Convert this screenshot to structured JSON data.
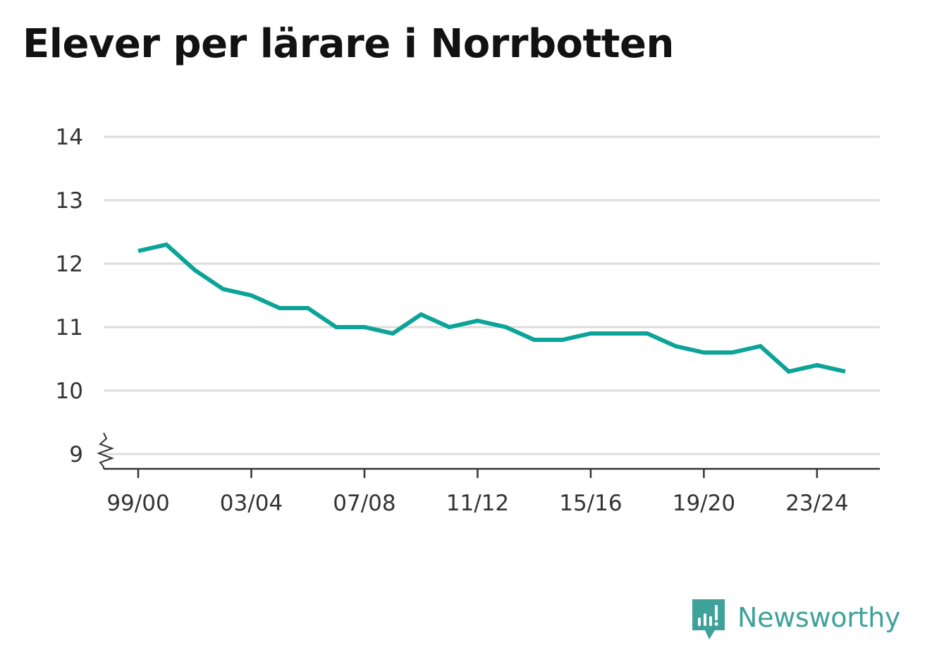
{
  "title": "Elever per lärare i Norrbotten",
  "brand": {
    "name": "Newsworthy",
    "icon": "newsworthy-logo-icon",
    "color": "#3fa29a"
  },
  "colors": {
    "line": "#0ca399",
    "grid": "#dddddd",
    "axis": "#333333",
    "text": "#333333"
  },
  "chart_data": {
    "type": "line",
    "title": "Elever per lärare i Norrbotten",
    "xlabel": "",
    "ylabel": "",
    "ylim": [
      9,
      14
    ],
    "yticks": [
      9,
      10,
      11,
      12,
      13,
      14
    ],
    "y_axis_break": true,
    "grid": true,
    "x_tick_labels": [
      "99/00",
      "03/04",
      "07/08",
      "11/12",
      "15/16",
      "19/20",
      "23/24"
    ],
    "x": [
      "99/00",
      "00/01",
      "01/02",
      "02/03",
      "03/04",
      "04/05",
      "05/06",
      "06/07",
      "07/08",
      "08/09",
      "09/10",
      "10/11",
      "11/12",
      "12/13",
      "13/14",
      "14/15",
      "15/16",
      "16/17",
      "17/18",
      "18/19",
      "19/20",
      "20/21",
      "21/22",
      "22/23",
      "23/24",
      "24/25"
    ],
    "series": [
      {
        "values": [
          12.2,
          12.3,
          11.9,
          11.6,
          11.5,
          11.3,
          11.3,
          11.0,
          11.0,
          10.9,
          11.2,
          11.0,
          11.1,
          11.0,
          10.8,
          10.8,
          10.9,
          10.9,
          10.9,
          10.7,
          10.6,
          10.6,
          10.7,
          10.3,
          10.4,
          10.3
        ]
      }
    ]
  }
}
